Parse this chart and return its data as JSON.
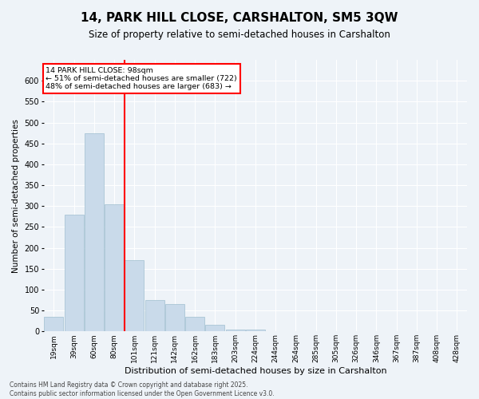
{
  "title": "14, PARK HILL CLOSE, CARSHALTON, SM5 3QW",
  "subtitle": "Size of property relative to semi-detached houses in Carshalton",
  "xlabel": "Distribution of semi-detached houses by size in Carshalton",
  "ylabel": "Number of semi-detached properties",
  "bar_color": "#c9daea",
  "bar_edge_color": "#a0bfd0",
  "bin_labels": [
    "19sqm",
    "39sqm",
    "60sqm",
    "80sqm",
    "101sqm",
    "121sqm",
    "142sqm",
    "162sqm",
    "183sqm",
    "203sqm",
    "224sqm",
    "244sqm",
    "264sqm",
    "285sqm",
    "305sqm",
    "326sqm",
    "346sqm",
    "367sqm",
    "387sqm",
    "408sqm",
    "428sqm"
  ],
  "bar_values": [
    35,
    280,
    475,
    305,
    170,
    75,
    65,
    35,
    15,
    5,
    5,
    0,
    0,
    0,
    0,
    0,
    0,
    0,
    0,
    0,
    0
  ],
  "ylim": [
    0,
    650
  ],
  "yticks": [
    0,
    50,
    100,
    150,
    200,
    250,
    300,
    350,
    400,
    450,
    500,
    550,
    600
  ],
  "vline_x": 3.5,
  "vline_label": "14 PARK HILL CLOSE: 98sqm",
  "annotation_smaller": "← 51% of semi-detached houses are smaller (722)",
  "annotation_larger": "48% of semi-detached houses are larger (683) →",
  "bg_color": "#eef3f8",
  "grid_color": "#ffffff",
  "footer": "Contains HM Land Registry data © Crown copyright and database right 2025.\nContains public sector information licensed under the Open Government Licence v3.0."
}
